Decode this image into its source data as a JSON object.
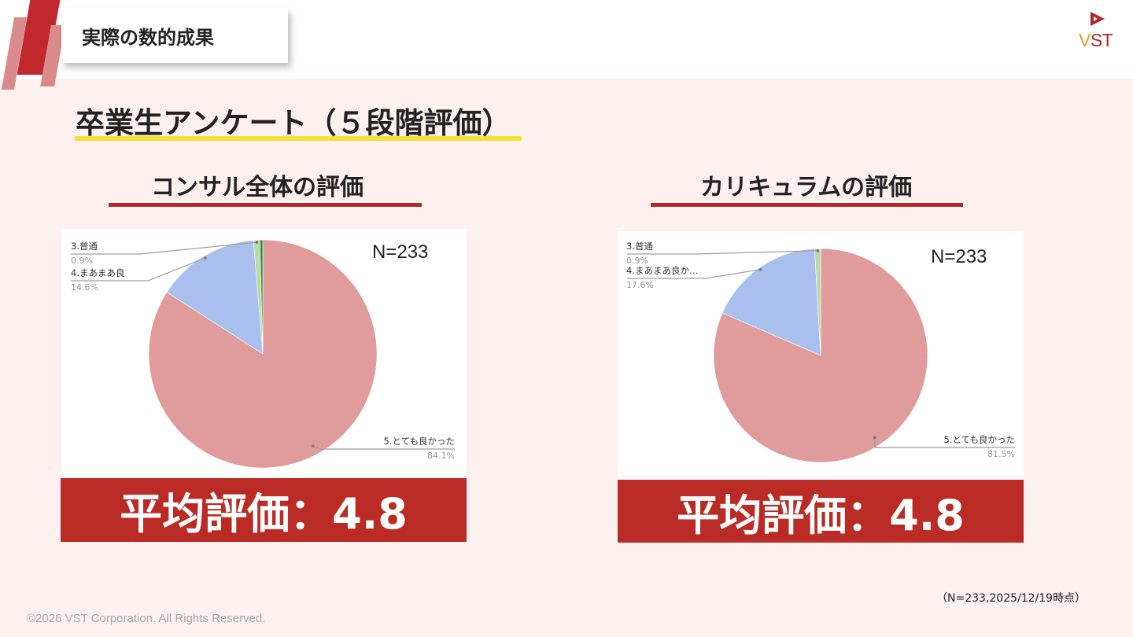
{
  "header": {
    "title": "実際の数的成果",
    "logo_text_v": "V",
    "logo_text_rest": "ST",
    "logo_colors": {
      "red": "#b0262b",
      "gold": "#e0a01b"
    }
  },
  "section": {
    "title": "卒業生アンケート（５段階評価）"
  },
  "panels": [
    {
      "title": "コンサル全体の評価",
      "n_label": "N=233",
      "average": "平均評価：4.8"
    },
    {
      "title": "カリキュラムの評価",
      "n_label": "N=233",
      "average": "平均評価：4.8"
    }
  ],
  "chart_data": [
    {
      "type": "pie",
      "title": "コンサル全体の評価",
      "slices": [
        {
          "label": "5.とても良かった",
          "value": 84.1,
          "display": "84.1%",
          "color": "#df9c9a"
        },
        {
          "label": "4.まあまあ良",
          "value": 14.6,
          "display": "14.6%",
          "color": "#a9c0ef"
        },
        {
          "label": "3.普通",
          "value": 0.9,
          "display": "0.9%",
          "color": "#b8d9a8"
        },
        {
          "value": 0.4,
          "color": "#2e8b3a"
        }
      ],
      "annotation": "N=233"
    },
    {
      "type": "pie",
      "title": "カリキュラムの評価",
      "slices": [
        {
          "label": "5.とても良かった",
          "value": 81.5,
          "display": "81.5%",
          "color": "#df9c9a"
        },
        {
          "label": "4.まあまあ良か…",
          "value": 17.6,
          "display": "17.6%",
          "color": "#a9c0ef"
        },
        {
          "label": "3.普通",
          "value": 0.9,
          "display": "0.9%",
          "color": "#b8d9a8"
        }
      ],
      "annotation": "N=233"
    }
  ],
  "footnote": "（N=233,2025/12/19時点）",
  "copyright": "©2026  VST Corporation. All Rights Reserved."
}
